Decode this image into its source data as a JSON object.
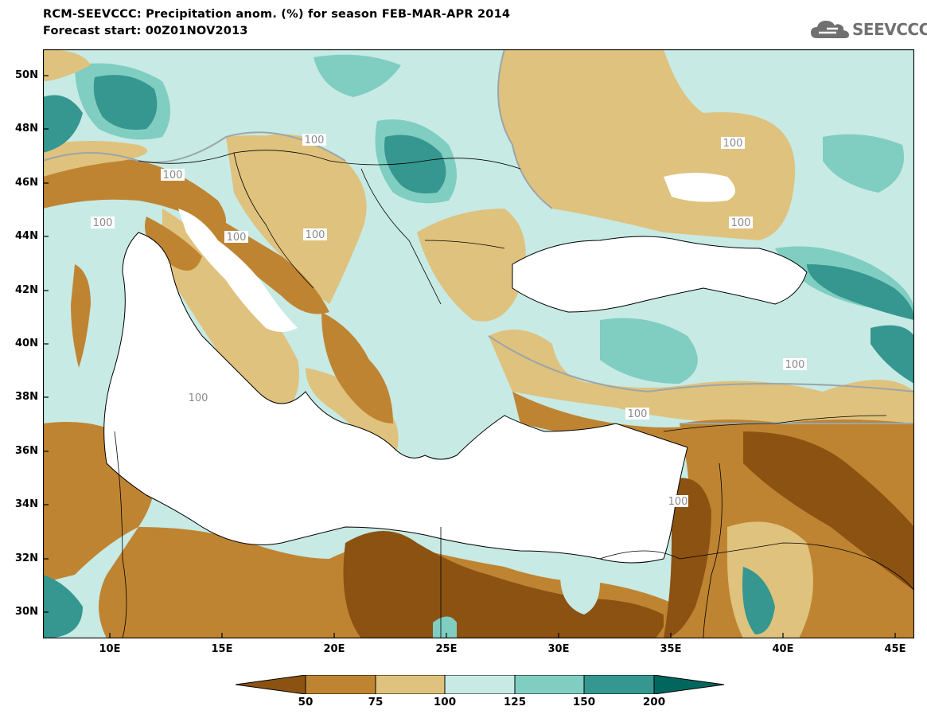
{
  "title": "RCM-SEEVCCC: Precipitation anom. (%) for season FEB-MAR-APR 2014",
  "subtitle": "Forecast start: 00Z01NOV2013",
  "logo": {
    "icon": "cloud-icon",
    "text": "SEEVCCC"
  },
  "colors": {
    "below_50": "#8c5212",
    "c50_75": "#bf8432",
    "c75_100": "#dfc27d",
    "c100_125": "#c7eae5",
    "c125_150": "#80cdc1",
    "c150_200": "#35978f",
    "above_200": "#01665e",
    "sea": "#ffffff",
    "contour_100": "#9aa6aa"
  },
  "map": {
    "lat_labels": [
      "50N",
      "48N",
      "46N",
      "44N",
      "42N",
      "40N",
      "38N",
      "36N",
      "34N",
      "32N",
      "30N"
    ],
    "lon_labels": [
      "10E",
      "15E",
      "20E",
      "25E",
      "30E",
      "35E",
      "40E",
      "45E"
    ],
    "contour_labels": [
      "100",
      "100",
      "100",
      "100",
      "100",
      "100",
      "100",
      "100",
      "100",
      "100",
      "100"
    ]
  },
  "colorbar": {
    "labels": [
      "50",
      "75",
      "100",
      "125",
      "150",
      "200"
    ]
  }
}
